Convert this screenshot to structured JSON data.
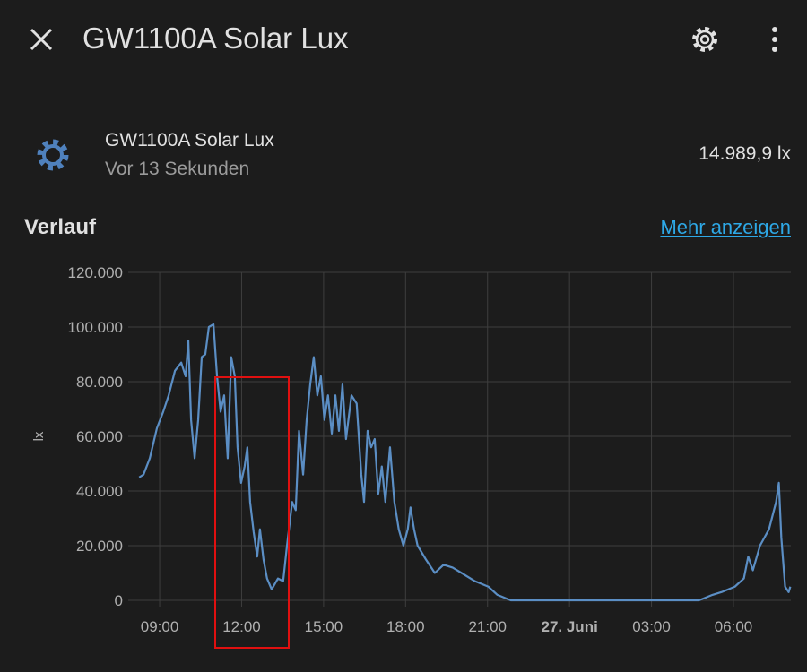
{
  "header": {
    "title": "GW1100A Solar Lux"
  },
  "entity": {
    "name": "GW1100A Solar Lux",
    "updated": "Vor 13 Sekunden",
    "state": "14.989,9 lx"
  },
  "section": {
    "title": "Verlauf",
    "link": "Mehr anzeigen"
  },
  "chart_data": {
    "type": "line",
    "y_label": "lx",
    "color": "#5b8ec4",
    "grid": true,
    "xlim": [
      7.85,
      32.1
    ],
    "xticks": [
      {
        "value": 9,
        "label": "09:00"
      },
      {
        "value": 12,
        "label": "12:00"
      },
      {
        "value": 15,
        "label": "15:00"
      },
      {
        "value": 18,
        "label": "18:00"
      },
      {
        "value": 21,
        "label": "21:00"
      },
      {
        "value": 24,
        "label": "27. Juni"
      },
      {
        "value": 27,
        "label": "03:00"
      },
      {
        "value": 30,
        "label": "06:00"
      }
    ],
    "ylim": [
      0,
      120000
    ],
    "yticks": [
      0,
      {
        "value": 20000,
        "label": "20.000"
      },
      {
        "value": 40000,
        "label": "40.000"
      },
      {
        "value": 60000,
        "label": "60.000"
      },
      {
        "value": 80000,
        "label": "80.000"
      },
      {
        "value": 100000,
        "label": "100.000"
      },
      {
        "value": 120000,
        "label": "120.000"
      }
    ],
    "x": [
      8.25,
      8.41,
      8.64,
      8.9,
      9.13,
      9.33,
      9.56,
      9.79,
      9.95,
      10.05,
      10.15,
      10.28,
      10.41,
      10.54,
      10.67,
      10.8,
      10.97,
      11.1,
      11.23,
      11.36,
      11.49,
      11.62,
      11.75,
      11.85,
      11.98,
      12.11,
      12.21,
      12.31,
      12.44,
      12.57,
      12.67,
      12.8,
      12.93,
      13.1,
      13.33,
      13.52,
      13.66,
      13.85,
      13.98,
      14.1,
      14.25,
      14.38,
      14.51,
      14.64,
      14.77,
      14.9,
      15.03,
      15.16,
      15.3,
      15.43,
      15.56,
      15.69,
      15.82,
      16.02,
      16.21,
      16.38,
      16.48,
      16.61,
      16.74,
      16.87,
      17.0,
      17.13,
      17.26,
      17.43,
      17.59,
      17.75,
      17.92,
      18.08,
      18.18,
      18.31,
      18.44,
      18.74,
      19.07,
      19.39,
      19.72,
      20.05,
      20.54,
      21.03,
      21.36,
      21.85,
      22.84,
      26.11,
      28.74,
      29.23,
      29.56,
      30.05,
      30.38,
      30.54,
      30.71,
      30.97,
      31.3,
      31.56,
      31.66,
      31.75,
      31.89,
      32.02,
      32.08
    ],
    "values": [
      45000,
      46000,
      52000,
      63000,
      69000,
      75000,
      84000,
      87000,
      82000,
      95000,
      66000,
      52000,
      66000,
      89000,
      90000,
      100000,
      101000,
      82000,
      69000,
      75000,
      52000,
      89000,
      82000,
      56000,
      43000,
      49000,
      56000,
      36000,
      25000,
      16000,
      26000,
      15000,
      8000,
      4000,
      8000,
      7000,
      20000,
      36000,
      33000,
      62000,
      46000,
      66000,
      79000,
      89000,
      75000,
      82000,
      66000,
      75000,
      61000,
      75000,
      62000,
      79000,
      59000,
      75000,
      72000,
      46000,
      36000,
      62000,
      56000,
      59000,
      39000,
      49000,
      36000,
      56000,
      36000,
      26000,
      20000,
      26000,
      34000,
      26000,
      20000,
      15000,
      10000,
      13000,
      12000,
      10000,
      7000,
      5000,
      2000,
      0,
      0,
      0,
      0,
      2000,
      3000,
      5000,
      8000,
      16000,
      11000,
      20000,
      26000,
      36000,
      43000,
      23000,
      5000,
      3000,
      5000
    ]
  }
}
